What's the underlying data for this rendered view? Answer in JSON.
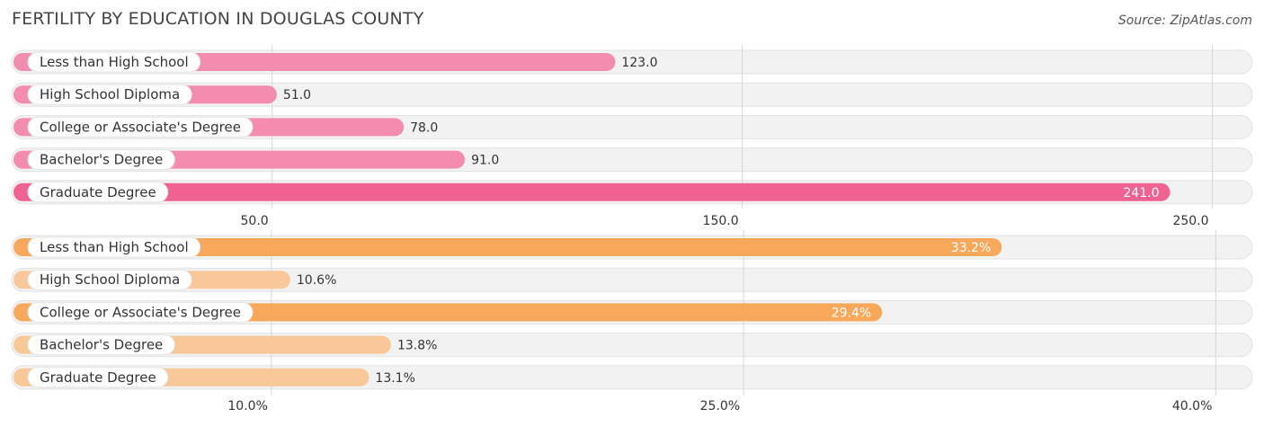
{
  "title": "FERTILITY BY EDUCATION IN DOUGLAS COUNTY",
  "source": "Source: ZipAtlas.com",
  "chart_data": [
    {
      "type": "bar",
      "orientation": "horizontal",
      "categories": [
        "Less than High School",
        "High School Diploma",
        "College or Associate's Degree",
        "Bachelor's Degree",
        "Graduate Degree"
      ],
      "values": [
        123.0,
        51.0,
        78.0,
        91.0,
        241.0
      ],
      "value_labels": [
        "123.0",
        "51.0",
        "78.0",
        "91.0",
        "241.0"
      ],
      "ticks": [
        50.0,
        150.0,
        250.0
      ],
      "tick_labels": [
        "50.0",
        "150.0",
        "250.0"
      ],
      "xlim": [
        -5.4,
        258.5
      ],
      "grid": true,
      "colors": {
        "bar": "#f48cb0",
        "bar_strong": "#f06292"
      }
    },
    {
      "type": "bar",
      "orientation": "horizontal",
      "categories": [
        "Less than High School",
        "High School Diploma",
        "College or Associate's Degree",
        "Bachelor's Degree",
        "Graduate Degree"
      ],
      "values": [
        33.2,
        10.6,
        29.4,
        13.8,
        13.1
      ],
      "value_labels": [
        "33.2%",
        "10.6%",
        "29.4%",
        "13.8%",
        "13.1%"
      ],
      "ticks": [
        10.0,
        25.0,
        40.0
      ],
      "tick_labels": [
        "10.0%",
        "25.0%",
        "40.0%"
      ],
      "xlim": [
        1.75,
        41.16
      ],
      "grid": true,
      "colors": {
        "bar": "#f9c898",
        "bar_strong": "#f7a85a"
      }
    }
  ]
}
